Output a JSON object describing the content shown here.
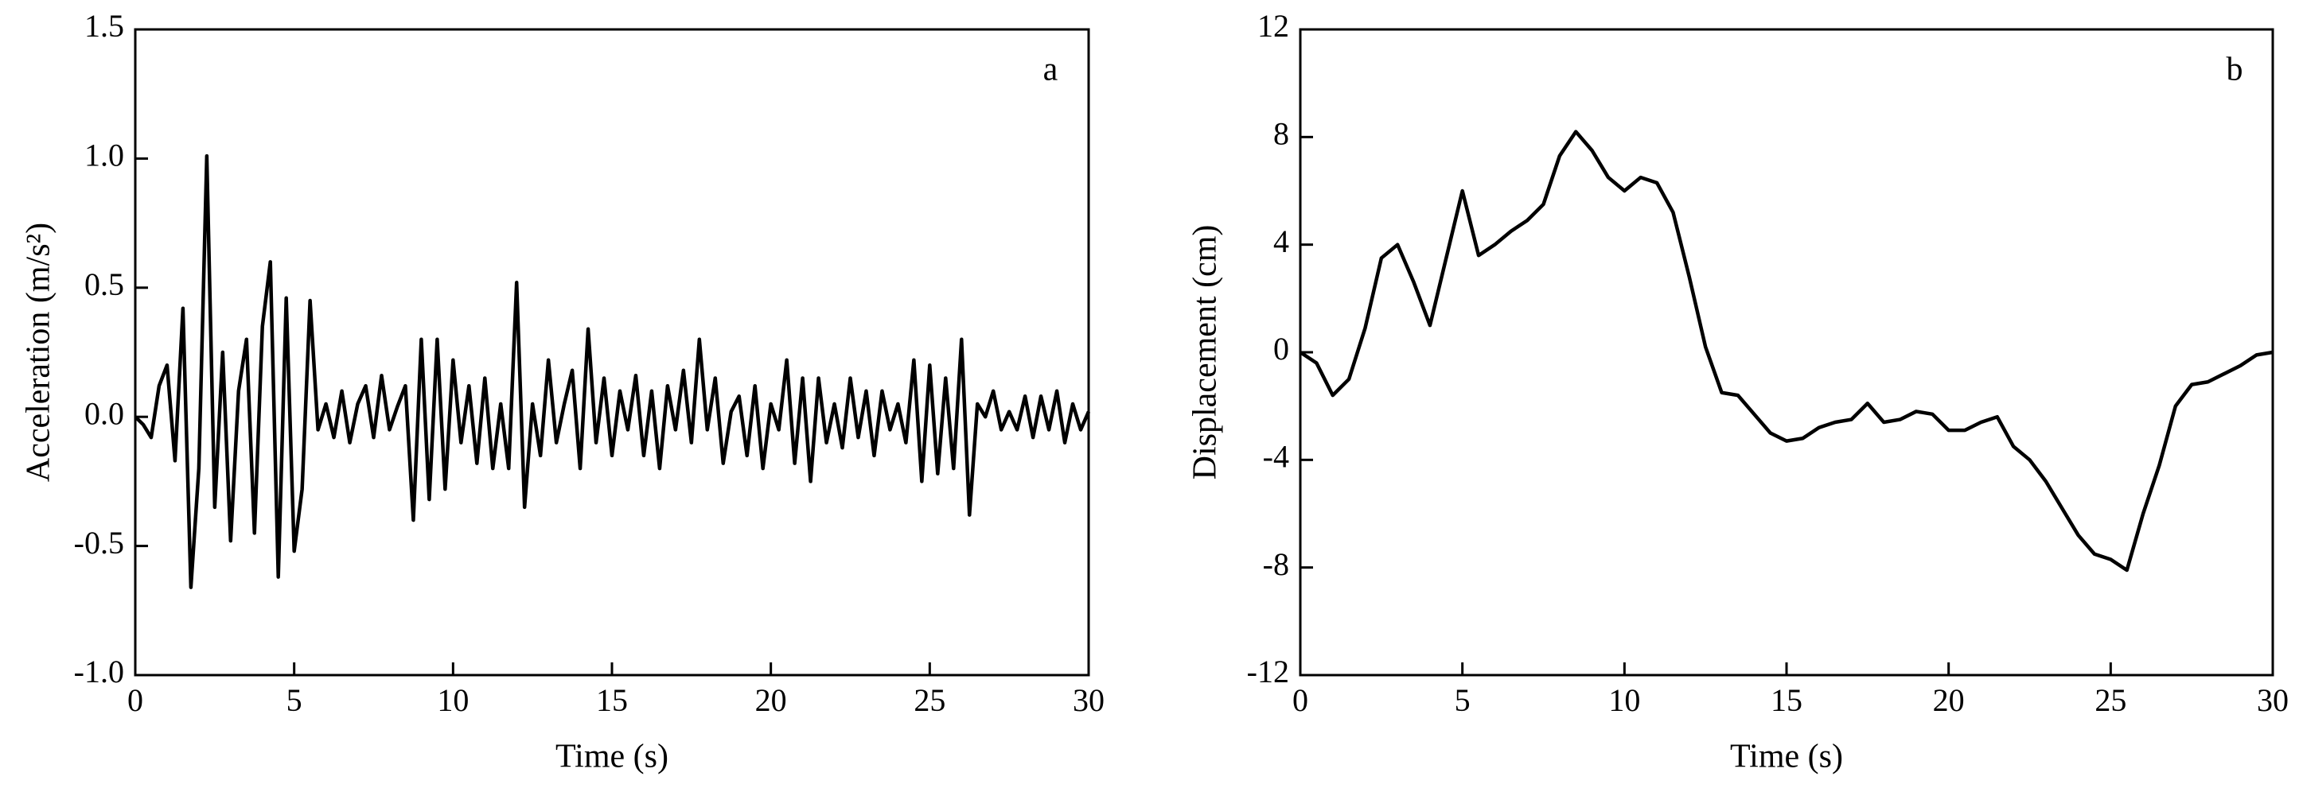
{
  "chart_data": [
    {
      "type": "line",
      "x_label": "Time (s)",
      "y_label": "Acceleration (m/s²)",
      "annotation": "a",
      "color": "#000000",
      "x": [
        0,
        0.25,
        0.5,
        0.75,
        1,
        1.25,
        1.5,
        1.75,
        2,
        2.25,
        2.5,
        2.75,
        3,
        3.25,
        3.5,
        3.75,
        4,
        4.25,
        4.5,
        4.75,
        5,
        5.25,
        5.5,
        5.75,
        6,
        6.25,
        6.5,
        6.75,
        7,
        7.25,
        7.5,
        7.75,
        8,
        8.25,
        8.5,
        8.75,
        9,
        9.25,
        9.5,
        9.75,
        10,
        10.25,
        10.5,
        10.75,
        11,
        11.25,
        11.5,
        11.75,
        12,
        12.25,
        12.5,
        12.75,
        13,
        13.25,
        13.5,
        13.75,
        14,
        14.25,
        14.5,
        14.75,
        15,
        15.25,
        15.5,
        15.75,
        16,
        16.25,
        16.5,
        16.75,
        17,
        17.25,
        17.5,
        17.75,
        18,
        18.25,
        18.5,
        18.75,
        19,
        19.25,
        19.5,
        19.75,
        20,
        20.25,
        20.5,
        20.75,
        21,
        21.25,
        21.5,
        21.75,
        22,
        22.25,
        22.5,
        22.75,
        23,
        23.25,
        23.5,
        23.75,
        24,
        24.25,
        24.5,
        24.75,
        25,
        25.25,
        25.5,
        25.75,
        26,
        26.25,
        26.5,
        26.75,
        27,
        27.25,
        27.5,
        27.75,
        28,
        28.25,
        28.5,
        28.75,
        29,
        29.25,
        29.5,
        29.75,
        30
      ],
      "values": [
        0,
        -0.03,
        -0.08,
        0.12,
        0.2,
        -0.17,
        0.42,
        -0.66,
        -0.2,
        1.01,
        -0.35,
        0.25,
        -0.48,
        0.1,
        0.3,
        -0.45,
        0.35,
        0.6,
        -0.62,
        0.46,
        -0.52,
        -0.28,
        0.45,
        -0.05,
        0.05,
        -0.08,
        0.1,
        -0.1,
        0.05,
        0.12,
        -0.08,
        0.16,
        -0.05,
        0.04,
        0.12,
        -0.4,
        0.3,
        -0.32,
        0.3,
        -0.28,
        0.22,
        -0.1,
        0.12,
        -0.18,
        0.15,
        -0.2,
        0.05,
        -0.2,
        0.52,
        -0.35,
        0.05,
        -0.15,
        0.22,
        -0.1,
        0.05,
        0.18,
        -0.2,
        0.34,
        -0.1,
        0.15,
        -0.15,
        0.1,
        -0.05,
        0.16,
        -0.15,
        0.1,
        -0.2,
        0.12,
        -0.05,
        0.18,
        -0.1,
        0.3,
        -0.05,
        0.15,
        -0.18,
        0.02,
        0.08,
        -0.15,
        0.12,
        -0.2,
        0.05,
        -0.05,
        0.22,
        -0.18,
        0.15,
        -0.25,
        0.15,
        -0.1,
        0.05,
        -0.12,
        0.15,
        -0.08,
        0.1,
        -0.15,
        0.1,
        -0.05,
        0.05,
        -0.1,
        0.22,
        -0.25,
        0.2,
        -0.22,
        0.15,
        -0.2,
        0.3,
        -0.38,
        0.05,
        0,
        0.1,
        -0.05,
        0.02,
        -0.05,
        0.08,
        -0.08,
        0.08,
        -0.05,
        0.1,
        -0.1,
        0.05,
        -0.05,
        0.02
      ],
      "xlim": [
        0,
        30
      ],
      "xticks": [
        0,
        5,
        10,
        15,
        20,
        25,
        30
      ],
      "ylim": [
        -1,
        1.5
      ],
      "yticks": [
        {
          "value": -1,
          "label": "-1.0"
        },
        -0.5,
        {
          "value": 0,
          "label": "0.0"
        },
        0.5,
        {
          "value": 1,
          "label": "1.0"
        },
        1.5
      ]
    },
    {
      "type": "line",
      "x_label": "Time (s)",
      "y_label": "Displacement (cm)",
      "annotation": "b",
      "color": "#000000",
      "x": [
        0,
        0.5,
        1,
        1.5,
        2,
        2.5,
        3,
        3.5,
        4,
        4.5,
        5,
        5.5,
        6,
        6.5,
        7,
        7.5,
        8,
        8.5,
        9,
        9.5,
        10,
        10.5,
        11,
        11.5,
        12,
        12.5,
        13,
        13.5,
        14,
        14.5,
        15,
        15.5,
        16,
        16.5,
        17,
        17.5,
        18,
        18.5,
        19,
        19.5,
        20,
        20.5,
        21,
        21.5,
        22,
        22.5,
        23,
        23.5,
        24,
        24.5,
        25,
        25.5,
        26,
        26.5,
        27,
        27.5,
        28,
        28.5,
        29,
        29.5,
        30
      ],
      "values": [
        0,
        -0.4,
        -1.6,
        -1,
        0.9,
        3.5,
        4,
        2.6,
        1,
        3.5,
        6,
        3.6,
        4,
        4.5,
        4.9,
        5.5,
        7.3,
        8.2,
        7.5,
        6.5,
        6,
        6.5,
        6.3,
        5.2,
        2.8,
        0.2,
        -1.5,
        -1.6,
        -2.3,
        -3,
        -3.3,
        -3.2,
        -2.8,
        -2.6,
        -2.5,
        -1.9,
        -2.6,
        -2.5,
        -2.2,
        -2.3,
        -2.9,
        -2.9,
        -2.6,
        -2.4,
        -3.5,
        -4,
        -4.8,
        -5.8,
        -6.8,
        -7.5,
        -7.7,
        -8.1,
        -6,
        -4.2,
        -2,
        -1.2,
        -1.1,
        -0.8,
        -0.5,
        -0.1,
        0
      ],
      "xlim": [
        0,
        30
      ],
      "xticks": [
        0,
        5,
        10,
        15,
        20,
        25,
        30
      ],
      "ylim": [
        -12,
        12
      ],
      "yticks": [
        -12,
        -8,
        -4,
        0,
        4,
        8,
        12
      ]
    }
  ]
}
